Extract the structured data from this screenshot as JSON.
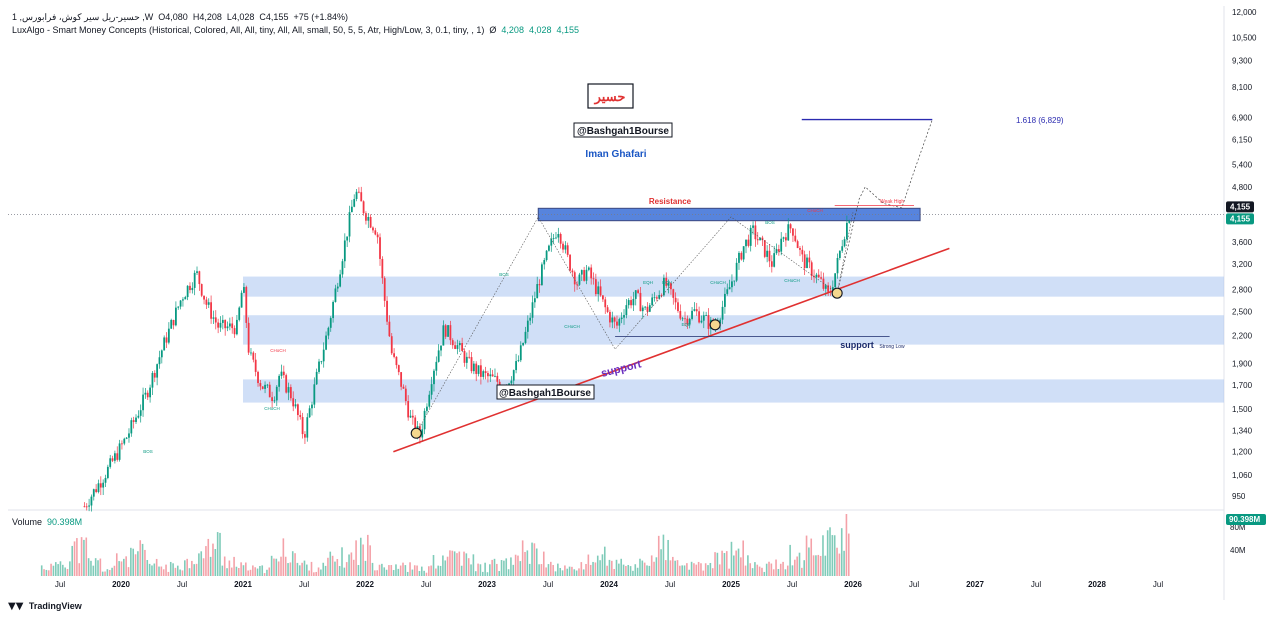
{
  "header": {
    "symbol_line": "1 ,حسیر-ریل سیر کوش، فرابورس ,W",
    "ohlc": {
      "o": "O4,080",
      "h": "H4,208",
      "l": "L4,028",
      "c": "C4,155",
      "chg": "+75 (+1.84%)"
    },
    "indicator": "LuxAlgo - Smart Money Concepts (Historical, Colored, All, All, tiny, All, All, small, 50, 5, 5, Atr, High/Low, 3, 0.1, tiny, , 1)",
    "indicator_zero": "Ø",
    "indicator_values": [
      "4,208",
      "4,028",
      "4,155"
    ]
  },
  "volume": {
    "label": "Volume",
    "value": "90.398M",
    "badge": "90.398M",
    "ticks": [
      "80M",
      "40M"
    ]
  },
  "footer": {
    "brand": "TradingView",
    "brand_icon": "tradingview-logo-icon"
  },
  "colors": {
    "up": "#089981",
    "down": "#f23645",
    "trend": "#e03131",
    "zone": "#aac4f0",
    "resistance": "#3a6fd8",
    "fib": "#2a2ab0",
    "annot": "#1a56c4",
    "last": "#089981"
  },
  "chart_data": {
    "type": "candlestick",
    "y_scale": "log",
    "ylim": [
      850,
      12500
    ],
    "y_ticks": [
      "12,000",
      "10,500",
      "9,300",
      "8,100",
      "6,900",
      "6,150",
      "5,400",
      "4,800",
      "3,600",
      "3,200",
      "2,800",
      "2,500",
      "2,200",
      "1,900",
      "1,700",
      "1,500",
      "1,340",
      "1,200",
      "1,060",
      "950"
    ],
    "x_ticks": [
      "Jul",
      "2020",
      "Jul",
      "2021",
      "Jul",
      "2022",
      "Jul",
      "2023",
      "Jul",
      "2024",
      "Jul",
      "2025",
      "Jul",
      "2026",
      "Jul",
      "2027",
      "Jul",
      "2028",
      "Jul"
    ],
    "last_price": "4,155",
    "path_points": [
      [
        2019.7,
        900
      ],
      [
        2019.9,
        1100
      ],
      [
        2020.05,
        1300
      ],
      [
        2020.2,
        1600
      ],
      [
        2020.35,
        2100
      ],
      [
        2020.5,
        2700
      ],
      [
        2020.62,
        3050
      ],
      [
        2020.7,
        2600
      ],
      [
        2020.8,
        2300
      ],
      [
        2020.95,
        2300
      ],
      [
        2021.0,
        2900
      ],
      [
        2021.05,
        2000
      ],
      [
        2021.15,
        1700
      ],
      [
        2021.25,
        1600
      ],
      [
        2021.3,
        1800
      ],
      [
        2021.4,
        1600
      ],
      [
        2021.5,
        1300
      ],
      [
        2021.6,
        1750
      ],
      [
        2021.7,
        2300
      ],
      [
        2021.8,
        3200
      ],
      [
        2021.92,
        4700
      ],
      [
        2022.0,
        4200
      ],
      [
        2022.1,
        3800
      ],
      [
        2022.15,
        2800
      ],
      [
        2022.22,
        2000
      ],
      [
        2022.3,
        1700
      ],
      [
        2022.38,
        1400
      ],
      [
        2022.45,
        1300
      ],
      [
        2022.55,
        1800
      ],
      [
        2022.65,
        2300
      ],
      [
        2022.75,
        2100
      ],
      [
        2022.85,
        1900
      ],
      [
        2022.95,
        1800
      ],
      [
        2023.05,
        1750
      ],
      [
        2023.15,
        1700
      ],
      [
        2023.25,
        1900
      ],
      [
        2023.33,
        2300
      ],
      [
        2023.42,
        2900
      ],
      [
        2023.5,
        3400
      ],
      [
        2023.58,
        3900
      ],
      [
        2023.66,
        3300
      ],
      [
        2023.74,
        2900
      ],
      [
        2023.82,
        3100
      ],
      [
        2023.9,
        2800
      ],
      [
        2023.98,
        2500
      ],
      [
        2024.06,
        2300
      ],
      [
        2024.14,
        2600
      ],
      [
        2024.22,
        2700
      ],
      [
        2024.3,
        2500
      ],
      [
        2024.38,
        2700
      ],
      [
        2024.46,
        2900
      ],
      [
        2024.54,
        2600
      ],
      [
        2024.62,
        2400
      ],
      [
        2024.7,
        2500
      ],
      [
        2024.78,
        2400
      ],
      [
        2024.86,
        2300
      ],
      [
        2024.94,
        2600
      ],
      [
        2025.02,
        3000
      ],
      [
        2025.1,
        3500
      ],
      [
        2025.18,
        3800
      ],
      [
        2025.26,
        3500
      ],
      [
        2025.34,
        3200
      ],
      [
        2025.42,
        3700
      ],
      [
        2025.5,
        3900
      ],
      [
        2025.58,
        3300
      ],
      [
        2025.66,
        3100
      ],
      [
        2025.74,
        2900
      ],
      [
        2025.8,
        2700
      ],
      [
        2025.86,
        3100
      ],
      [
        2025.92,
        3700
      ],
      [
        2025.97,
        4155
      ]
    ],
    "volume_levels": [
      0.2,
      0.35,
      0.6,
      0.3,
      0.15,
      0.4,
      0.5,
      0.25,
      0.2,
      0.3,
      0.45,
      0.7,
      0.35,
      0.2,
      0.15,
      0.3,
      0.55,
      0.25,
      0.2,
      0.35,
      0.4,
      0.6,
      0.3,
      0.25,
      0.2,
      0.15,
      0.3,
      0.5,
      0.35,
      0.2,
      0.25,
      0.3,
      0.55,
      0.4,
      0.2,
      0.15,
      0.3,
      0.45,
      0.25,
      0.2,
      0.35,
      0.6,
      0.3,
      0.2,
      0.25,
      0.4,
      0.5,
      0.3,
      0.2,
      0.35,
      0.45,
      0.6,
      0.8,
      1.0
    ],
    "annotations": {
      "symbol_box": "حسیر",
      "handle": "@Bashgah1Bourse",
      "author": "Iman Ghafari",
      "resistance": "Resistance",
      "support_1": "support",
      "support_2": "support",
      "strong_low": "Strong Low",
      "weak_high": "Weak High",
      "fib": "1.618 (6,829)",
      "smc": [
        "BOS",
        "CHoCH",
        "CHoCH",
        "BOS",
        "CHoCH",
        "EQH",
        "EQH",
        "EQL",
        "CHoCH",
        "BOS",
        "CHoCH",
        "CHoCH"
      ]
    },
    "zones": [
      {
        "from": 2021.0,
        "to": 2026.9,
        "top": 3000,
        "bottom": 2700
      },
      {
        "from": 2021.0,
        "to": 2026.9,
        "top": 2450,
        "bottom": 2100
      },
      {
        "from": 2021.0,
        "to": 2026.9,
        "top": 1750,
        "bottom": 1550
      }
    ],
    "resistance_box": {
      "from": 2023.42,
      "to": 2026.55,
      "top": 4290,
      "bottom": 4020
    },
    "trendline": [
      [
        2022.38,
        1240
      ],
      [
        2026.2,
        3030
      ]
    ],
    "fib_line": {
      "from": 2025.58,
      "to": 2026.65,
      "y": 6829
    },
    "swing_circles": [
      [
        2022.42,
        1320
      ],
      [
        2024.87,
        2330
      ],
      [
        2025.87,
        2750
      ]
    ]
  }
}
